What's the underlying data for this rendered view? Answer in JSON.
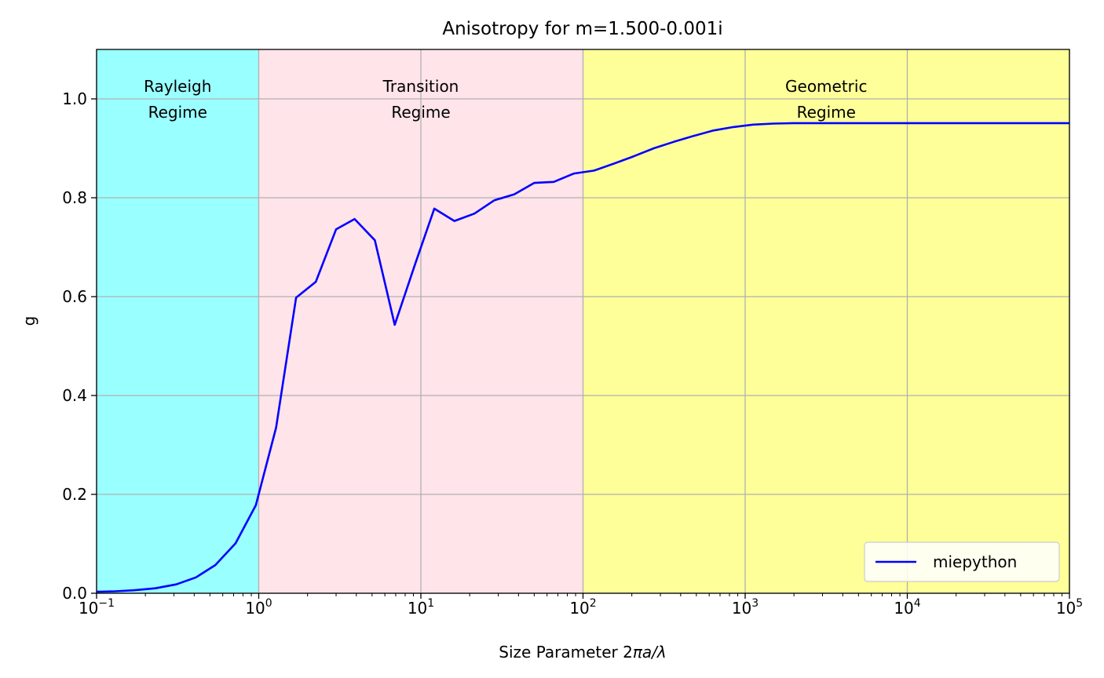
{
  "chart_data": {
    "type": "line",
    "title": "Anisotropy for m=1.500-0.001i",
    "xlabel_prefix": "Size Parameter 2",
    "xlabel_symbol": "πa/λ",
    "ylabel": "g",
    "xscale": "log",
    "xlim": [
      0.1,
      100000
    ],
    "ylim": [
      0.0,
      1.1
    ],
    "grid": true,
    "legend_position": "lower right",
    "x_ticks": [
      {
        "base": "10",
        "exp": "−1",
        "value": 0.1
      },
      {
        "base": "10",
        "exp": "0",
        "value": 1
      },
      {
        "base": "10",
        "exp": "1",
        "value": 10
      },
      {
        "base": "10",
        "exp": "2",
        "value": 100
      },
      {
        "base": "10",
        "exp": "3",
        "value": 1000
      },
      {
        "base": "10",
        "exp": "4",
        "value": 10000
      },
      {
        "base": "10",
        "exp": "5",
        "value": 100000
      }
    ],
    "y_ticks": [
      {
        "label": "0.0",
        "value": 0.0
      },
      {
        "label": "0.2",
        "value": 0.2
      },
      {
        "label": "0.4",
        "value": 0.4
      },
      {
        "label": "0.6",
        "value": 0.6
      },
      {
        "label": "0.8",
        "value": 0.8
      },
      {
        "label": "1.0",
        "value": 1.0
      }
    ],
    "regions": [
      {
        "line1": "Rayleigh",
        "line2": "Regime",
        "x_range": [
          0.1,
          1
        ],
        "color": "#9affff"
      },
      {
        "line1": "Transition",
        "line2": "Regime",
        "x_range": [
          1,
          100
        ],
        "color": "#ffe4ea"
      },
      {
        "line1": "Geometric",
        "line2": "Regime",
        "x_range": [
          100,
          100000
        ],
        "color": "#ffff99"
      }
    ],
    "series": [
      {
        "name": "miepython",
        "color": "#0000ff",
        "x": [
          0.1,
          0.13,
          0.17,
          0.23,
          0.31,
          0.41,
          0.54,
          0.72,
          0.96,
          1.28,
          1.7,
          2.25,
          3.0,
          3.9,
          5.2,
          6.9,
          9.2,
          12.1,
          16.1,
          21.4,
          28.4,
          37.7,
          50,
          66,
          88,
          117,
          155,
          206,
          273,
          362,
          480,
          637,
          845,
          1120,
          1490,
          1980,
          2620,
          3480,
          4610,
          6120,
          8110,
          10000,
          100000
        ],
        "y": [
          0.003,
          0.004,
          0.006,
          0.01,
          0.018,
          0.032,
          0.057,
          0.101,
          0.178,
          0.335,
          0.598,
          0.63,
          0.736,
          0.757,
          0.714,
          0.543,
          0.665,
          0.778,
          0.753,
          0.768,
          0.795,
          0.807,
          0.83,
          0.832,
          0.849,
          0.855,
          0.869,
          0.884,
          0.9,
          0.913,
          0.925,
          0.936,
          0.943,
          0.948,
          0.95,
          0.951,
          0.951,
          0.951,
          0.951,
          0.951,
          0.951,
          0.951,
          0.951
        ]
      }
    ]
  }
}
